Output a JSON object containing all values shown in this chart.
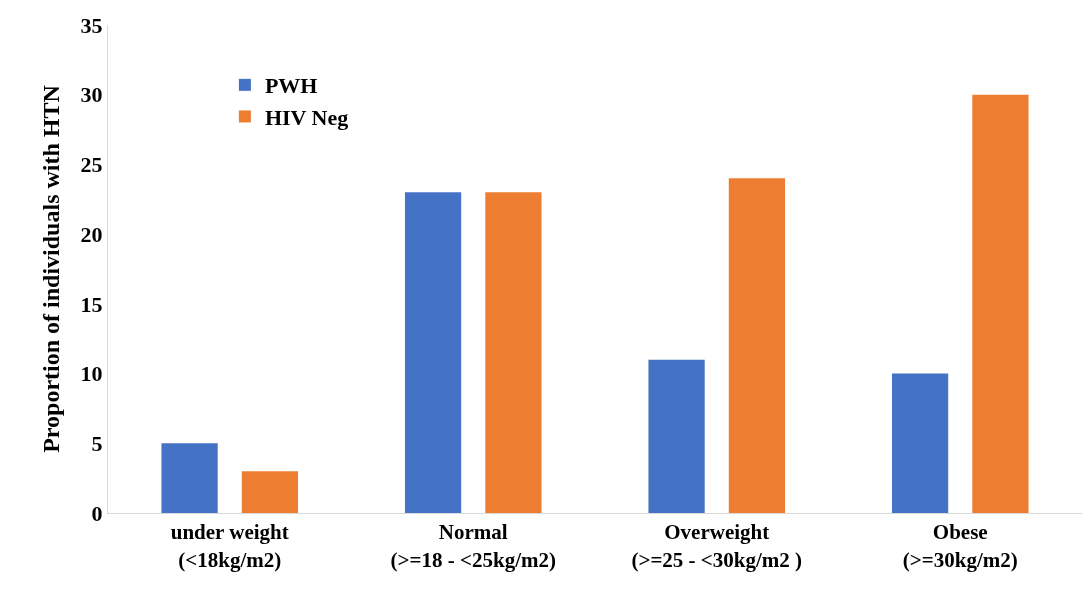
{
  "chart_data": {
    "type": "bar",
    "ylabel": "Proportion of individuals with HTN",
    "categories": [
      "under weight\n(<18kg/m2)",
      "Normal\n(>=18 - <25kg/m2)",
      "Overweight\n(>=25 - <30kg/m2 )",
      "Obese\n(>=30kg/m2)"
    ],
    "series": [
      {
        "name": "PWH",
        "color": "#4472c4",
        "values": [
          5,
          23,
          11,
          10
        ]
      },
      {
        "name": "HIV Neg",
        "color": "#ed7d31",
        "values": [
          3,
          23,
          24,
          30
        ]
      }
    ],
    "ylim": [
      0,
      35
    ],
    "yticks": [
      0,
      5,
      10,
      15,
      20,
      25,
      30,
      35
    ],
    "grid": false,
    "legend": "top left"
  }
}
